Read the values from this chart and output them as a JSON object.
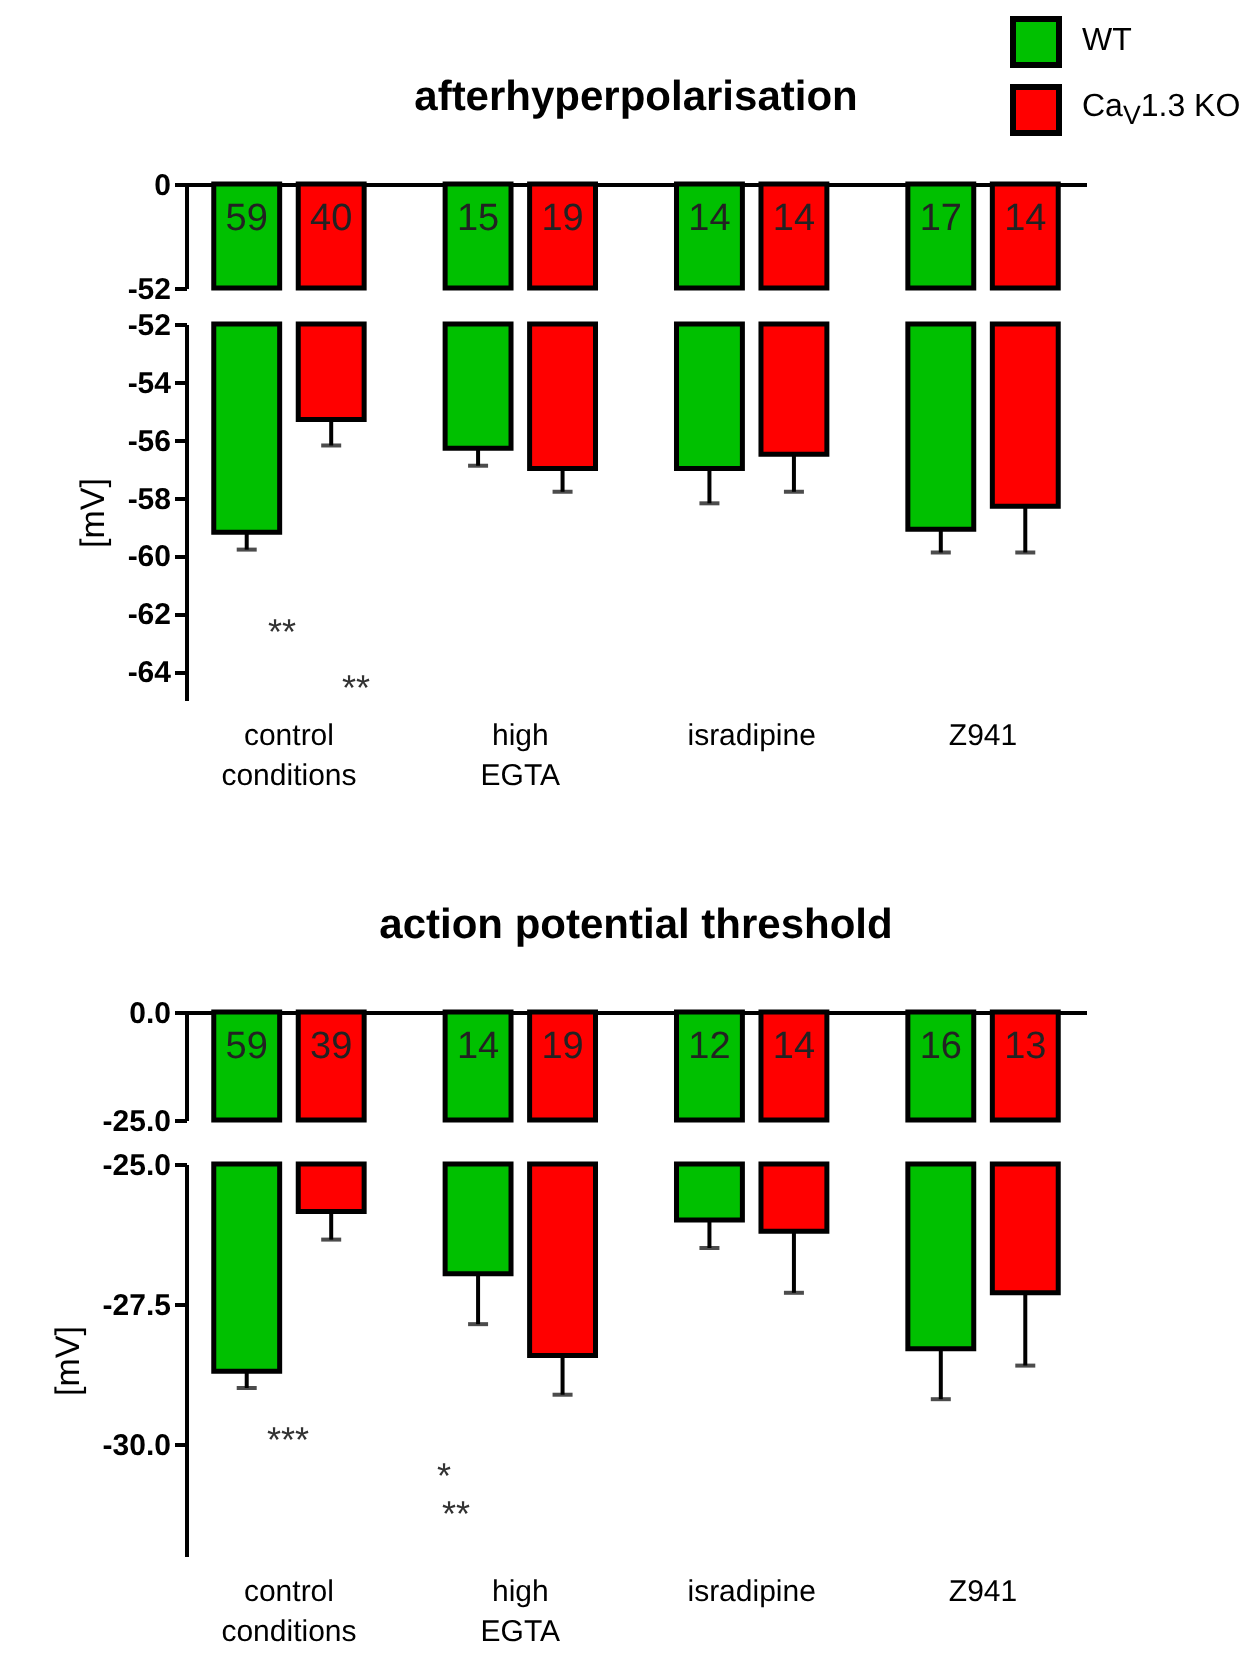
{
  "chart_data": [
    {
      "type": "bar",
      "title": "afterhyperpolarisation",
      "ylim": [
        -52,
        0
      ],
      "yticks": [
        0,
        -52
      ],
      "tick_labels": "y",
      "legend": "top right",
      "grid": false,
      "series": [
        {
          "name": "WT",
          "color": "#00c000",
          "values": [
            -52,
            -52,
            -52,
            -52
          ]
        },
        {
          "name": "Ca$_{V}$1.3 KO",
          "color": "#ff0000",
          "values": [
            -52,
            -52,
            -52,
            -52
          ]
        }
      ],
      "annotations": [
        "59",
        "40",
        "15",
        "19",
        "14",
        "14",
        "17",
        "14"
      ]
    },
    {
      "type": "bar",
      "ylabel": "[mV]",
      "categories": [
        "control conditions",
        "high EGTA",
        "isradipine",
        "Z941"
      ],
      "ylim": [
        -65,
        -52
      ],
      "yticks": [
        -52,
        -54,
        -56,
        -58,
        -60,
        -62,
        -64
      ],
      "grid": false,
      "series": [
        {
          "color": "#00c000",
          "values": [
            -59.2,
            -56.3,
            -57.0,
            -59.1
          ],
          "errors": [
            0.6,
            0.6,
            1.2,
            0.8
          ]
        },
        {
          "color": "#ff0000",
          "values": [
            -55.3,
            -57.0,
            -56.5,
            -58.3
          ],
          "errors": [
            0.9,
            0.8,
            1.3,
            1.6
          ]
        }
      ],
      "annotations": [
        "**",
        "**"
      ]
    },
    {
      "type": "bar",
      "title": "action potential threshold",
      "ylim": [
        -25,
        0
      ],
      "yticks": [
        {
          "value": 0,
          "label": "0.0"
        },
        {
          "value": -25,
          "label": "-25.0"
        }
      ],
      "tick_labels": "y",
      "grid": false,
      "series": [
        {
          "color": "#00c000",
          "values": [
            -25,
            -25,
            -25,
            -25
          ]
        },
        {
          "color": "#ff0000",
          "values": [
            -25,
            -25,
            -25,
            -25
          ]
        }
      ],
      "annotations": [
        "59",
        "39",
        "14",
        "19",
        "12",
        "14",
        "16",
        "13"
      ]
    },
    {
      "type": "bar",
      "ylabel": "[mV]",
      "categories": [
        "control conditions",
        "high EGTA",
        "isradipine",
        "Z941"
      ],
      "ylim": [
        -32,
        -25
      ],
      "yticks": [
        {
          "value": -25,
          "label": "-25.0"
        },
        {
          "value": -27.5,
          "label": "-27.5"
        },
        {
          "value": -30,
          "label": "-30.0"
        }
      ],
      "grid": false,
      "series": [
        {
          "color": "#00c000",
          "values": [
            -28.7,
            -26.96,
            -26.0,
            -28.3
          ],
          "errors": [
            0.3,
            0.9,
            0.5,
            0.9
          ]
        },
        {
          "color": "#ff0000",
          "values": [
            -25.85,
            -28.42,
            -26.2,
            -27.3
          ],
          "errors": [
            0.5,
            0.7,
            1.1,
            1.3
          ]
        }
      ],
      "annotations": [
        "***",
        "*",
        "**"
      ]
    }
  ]
}
